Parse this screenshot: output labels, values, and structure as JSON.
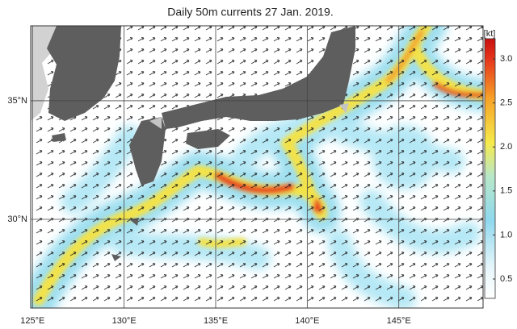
{
  "chart_data": {
    "type": "map",
    "title": "Daily 50m currents 27 Jan. 2019.",
    "xlim": [
      124.9,
      149.6
    ],
    "ylim": [
      26.26,
      38.16
    ],
    "xticks": [
      {
        "value": 125,
        "label": "125°E"
      },
      {
        "value": 130,
        "label": "130°E"
      },
      {
        "value": 135,
        "label": "135°E"
      },
      {
        "value": 140,
        "label": "140°E"
      },
      {
        "value": 145,
        "label": "145°E"
      }
    ],
    "yticks": [
      {
        "value": 30,
        "label": "30°N"
      },
      {
        "value": 35,
        "label": "35°N"
      }
    ],
    "colorbar": {
      "label": "[kt]",
      "lim": [
        0.28,
        3.23
      ],
      "ticks": [
        0.5,
        {
          "value": 1,
          "label": "1.0"
        },
        1.5,
        {
          "value": 2,
          "label": "2.0"
        },
        2.5,
        {
          "value": 3,
          "label": "3.0"
        }
      ]
    },
    "grid": true
  }
}
